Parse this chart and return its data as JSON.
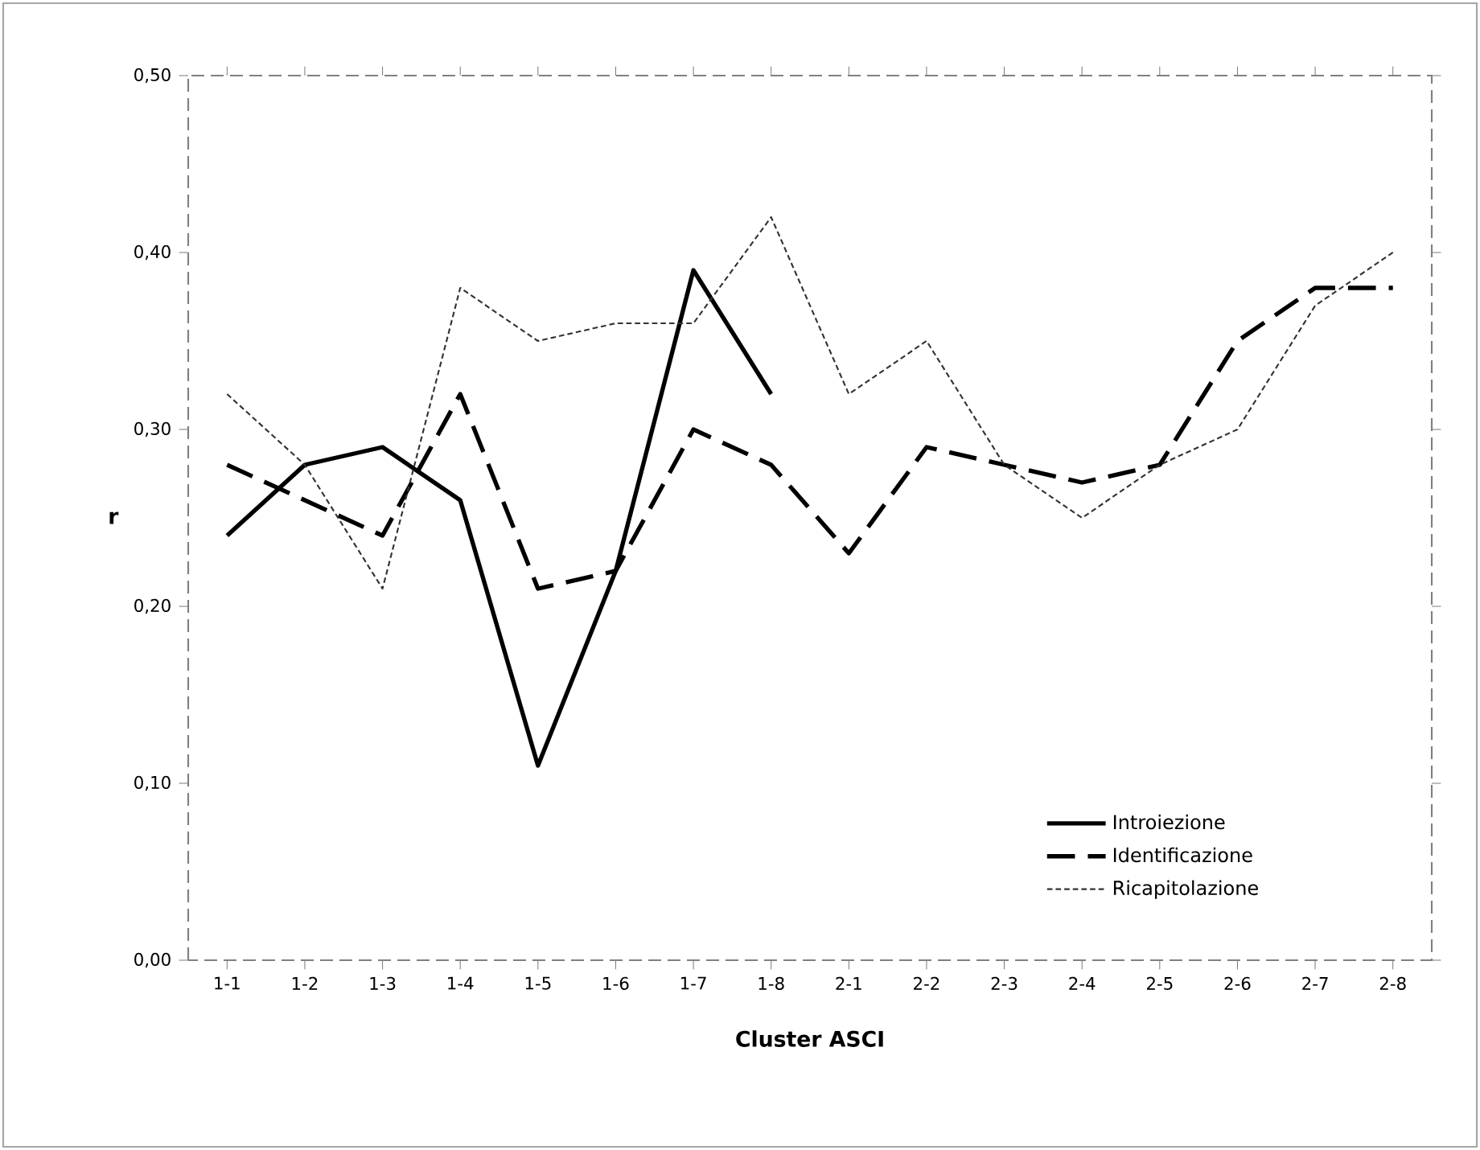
{
  "chart_data": {
    "type": "line",
    "xlabel": "Cluster ASCI",
    "ylabel": "r",
    "categories": [
      "1-1",
      "1-2",
      "1-3",
      "1-4",
      "1-5",
      "1-6",
      "1-7",
      "1-8",
      "2-1",
      "2-2",
      "2-3",
      "2-4",
      "2-5",
      "2-6",
      "2-7",
      "2-8"
    ],
    "series": [
      {
        "name": "Introiezione",
        "color": "#000000",
        "line_style": "solid",
        "values": [
          0.24,
          0.28,
          0.29,
          0.26,
          0.11,
          0.22,
          0.39,
          0.32,
          null,
          null,
          null,
          null,
          null,
          null,
          null,
          null
        ]
      },
      {
        "name": "Identificazione",
        "color": "#000000",
        "line_style": "dashed",
        "values": [
          0.28,
          0.26,
          0.24,
          0.32,
          0.21,
          0.22,
          0.3,
          0.28,
          0.23,
          0.29,
          0.28,
          0.27,
          0.28,
          0.35,
          0.38,
          0.38
        ]
      },
      {
        "name": "Ricapitolazione",
        "color": "#333333",
        "line_style": "dotted",
        "values": [
          0.32,
          0.28,
          0.21,
          0.38,
          0.35,
          0.36,
          0.36,
          0.42,
          0.32,
          0.35,
          0.28,
          0.25,
          0.28,
          0.3,
          0.37,
          0.4
        ]
      }
    ],
    "ylim": [
      0,
      0.5
    ],
    "yticks": [
      {
        "value": 0,
        "label": "0,00"
      },
      {
        "value": 0.1,
        "label": "0,10"
      },
      {
        "value": 0.2,
        "label": "0,20"
      },
      {
        "value": 0.3,
        "label": "0,30"
      },
      {
        "value": 0.4,
        "label": "0,40"
      },
      {
        "value": 0.5,
        "label": "0,50"
      }
    ],
    "legend": "bottom right",
    "grid": false,
    "marker": "none"
  }
}
